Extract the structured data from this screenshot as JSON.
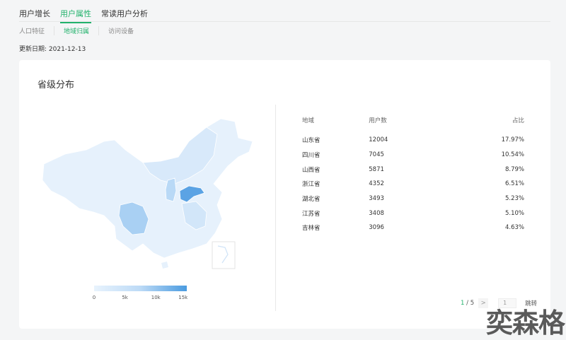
{
  "tabs": [
    {
      "label": "用户增长"
    },
    {
      "label": "用户属性",
      "active": true
    },
    {
      "label": "常读用户分析"
    }
  ],
  "subtabs": [
    {
      "label": "人口特征"
    },
    {
      "label": "地域归属",
      "active": true
    },
    {
      "label": "访问设备"
    }
  ],
  "update_date": "更新日期:  2021-12-13",
  "card": {
    "title": "省级分布"
  },
  "legend": {
    "ticks": [
      "0",
      "5k",
      "10k",
      "15k"
    ],
    "min": 0,
    "max": 15000,
    "colors": [
      "#e8f3fd",
      "#4a9be0"
    ]
  },
  "table": {
    "headers": [
      "地域",
      "用户数",
      "占比"
    ],
    "rows": [
      [
        "山东省",
        "12004",
        "17.97%"
      ],
      [
        "四川省",
        "7045",
        "10.54%"
      ],
      [
        "山西省",
        "5871",
        "8.79%"
      ],
      [
        "浙江省",
        "4352",
        "6.51%"
      ],
      [
        "湖北省",
        "3493",
        "5.23%"
      ],
      [
        "江苏省",
        "3408",
        "5.10%"
      ],
      [
        "吉林省",
        "3096",
        "4.63%"
      ]
    ]
  },
  "pager": {
    "current": "1",
    "sep": " / ",
    "total": "5",
    "next": ">",
    "input_placeholder": "1",
    "jump": "跳转"
  },
  "watermark": "奕森格",
  "accent": "#22b26c"
}
